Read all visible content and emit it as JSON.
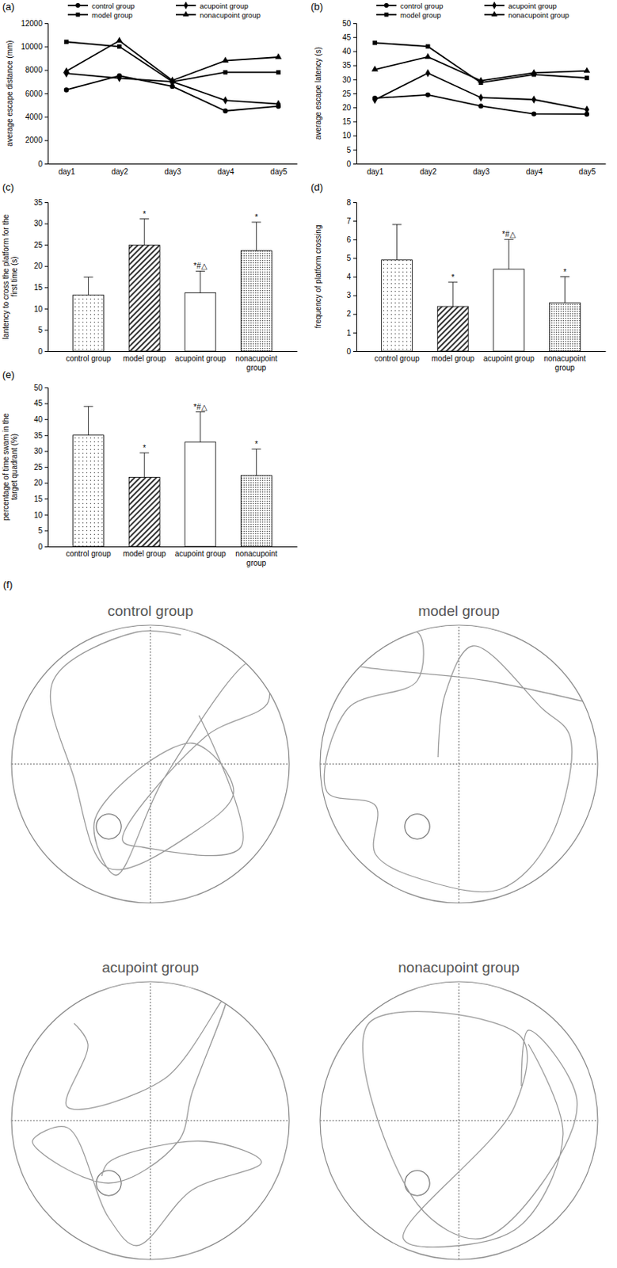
{
  "chart_data": [
    {
      "type": "line",
      "panel": "(a)",
      "y_label": "average escape distance  (mm)",
      "x": [
        "day1",
        "day2",
        "day3",
        "day4",
        "day5"
      ],
      "ylim": [
        0,
        12000
      ],
      "yticks": [
        0,
        2000,
        4000,
        6000,
        8000,
        10000,
        12000
      ],
      "legend": "top",
      "series": [
        {
          "name": "control group",
          "color": "#000000",
          "marker": "circle",
          "values": [
            6300,
            7500,
            6600,
            4500,
            4900
          ]
        },
        {
          "name": "acupoint group",
          "color": "#000000",
          "marker": "diamond",
          "values": [
            7700,
            7300,
            7000,
            5400,
            5100
          ]
        },
        {
          "name": "model group",
          "color": "#000000",
          "marker": "square",
          "values": [
            10400,
            10000,
            7000,
            7800,
            7800
          ]
        },
        {
          "name": "nonacupoint group",
          "color": "#000000",
          "marker": "triangle",
          "values": [
            7900,
            10500,
            7100,
            8800,
            9100
          ]
        }
      ]
    },
    {
      "type": "line",
      "panel": "(b)",
      "y_label": "average escape latency  (s)",
      "x": [
        "day1",
        "day2",
        "day3",
        "day4",
        "day5"
      ],
      "ylim": [
        0,
        50
      ],
      "yticks": [
        0,
        5,
        10,
        15,
        20,
        25,
        30,
        35,
        40,
        45,
        50
      ],
      "legend": "top",
      "series": [
        {
          "name": "control group",
          "color": "#000000",
          "marker": "circle",
          "values": [
            23.3,
            24.5,
            20.5,
            17.7,
            17.6
          ]
        },
        {
          "name": "acupoint group",
          "color": "#000000",
          "marker": "diamond",
          "values": [
            22.7,
            32.2,
            23.5,
            22.8,
            19.2
          ]
        },
        {
          "name": "model group",
          "color": "#000000",
          "marker": "square",
          "values": [
            43,
            41.7,
            28.8,
            31.7,
            30.5
          ]
        },
        {
          "name": "nonacupoint group",
          "color": "#000000",
          "marker": "triangle",
          "values": [
            33.5,
            38,
            29.5,
            32.3,
            33
          ]
        }
      ]
    },
    {
      "type": "bar",
      "panel": "(c)",
      "y_label": [
        "lantency to cross the platform for the",
        "first time (s)"
      ],
      "categories": [
        "control group",
        "model group",
        "acupoint group",
        "nonacupoint group"
      ],
      "values": [
        13.2,
        24.9,
        13.7,
        23.6
      ],
      "errors": [
        4.2,
        6.2,
        5.1,
        6.7
      ],
      "annotations": [
        null,
        "*",
        "*#△",
        "*"
      ],
      "colors": [
        "#ffffff",
        "#ffffff",
        "#ffffff",
        "#ffffff"
      ],
      "ylim": [
        0,
        35
      ],
      "yticks": [
        0,
        5,
        10,
        15,
        20,
        25,
        30,
        35
      ]
    },
    {
      "type": "bar",
      "panel": "(d)",
      "y_label": "frequency of platform crossing",
      "categories": [
        "control group",
        "model group",
        "acupoint group",
        "nonacupoint group"
      ],
      "values": [
        4.9,
        2.4,
        4.4,
        2.6
      ],
      "errors": [
        1.9,
        1.3,
        1.6,
        1.4
      ],
      "annotations": [
        null,
        "*",
        "*#△",
        "*"
      ],
      "colors": [
        "#ffffff",
        "#ffffff",
        "#ffffff",
        "#ffffff"
      ],
      "ylim": [
        0,
        8
      ],
      "yticks": [
        0,
        1,
        2,
        3,
        4,
        5,
        6,
        7,
        8
      ]
    },
    {
      "type": "bar",
      "panel": "(e)",
      "y_label": [
        "percentage of time swam in the",
        "target quadrant (%)"
      ],
      "categories": [
        "control group",
        "model group",
        "acupoint group",
        "nonacupoint group"
      ],
      "values": [
        35,
        21.7,
        32.8,
        22.3
      ],
      "errors": [
        9,
        7.7,
        9.5,
        8.3
      ],
      "annotations": [
        null,
        "*",
        "*#△",
        "*"
      ],
      "colors": [
        "#ffffff",
        "#ffffff",
        "#ffffff",
        "#ffffff"
      ],
      "ylim": [
        0,
        50
      ],
      "yticks": [
        0,
        5,
        10,
        15,
        20,
        25,
        30,
        35,
        40,
        45,
        50
      ]
    },
    {
      "type": "trajectory",
      "panel": "(f)",
      "plots": [
        {
          "title": "control group",
          "xlim": [
            -1,
            1
          ],
          "ylim": [
            -1,
            1
          ],
          "tick_labels": false,
          "color": "#9a9a9a",
          "x": [
            0.22,
            -0.1,
            -0.7,
            -0.55,
            -0.3,
            0.3,
            0.6,
            0.3,
            -0.4,
            -0.25,
            0.1,
            0.75,
            0.85,
            0.4,
            -0.2,
            -0.05,
            0.65,
            0.35
          ],
          "y": [
            0.93,
            0.95,
            0.6,
            -0.1,
            -0.75,
            -0.5,
            -0.2,
            0.15,
            -0.4,
            -0.8,
            -0.1,
            0.75,
            0.45,
            0.2,
            -0.55,
            -0.6,
            -0.6,
            0.35
          ],
          "platform": {
            "x": -0.3,
            "y": -0.45,
            "r": 0.09
          }
        },
        {
          "title": "model group",
          "xlim": [
            -1,
            1
          ],
          "ylim": [
            -1,
            1
          ],
          "tick_labels": false,
          "color": "#9a9a9a",
          "x": [
            0.9,
            0.2,
            -0.85,
            -0.3,
            -0.3,
            -0.8,
            -0.95,
            -0.6,
            -0.6,
            -0.2,
            0.3,
            0.65,
            0.8,
            0.6,
            0.1,
            -0.1,
            -0.15
          ],
          "y": [
            0.45,
            0.6,
            0.75,
            0.95,
            0.6,
            0.4,
            -0.2,
            -0.3,
            -0.65,
            -0.85,
            -0.9,
            -0.55,
            0.2,
            0.4,
            0.85,
            0.5,
            0.05
          ],
          "platform": {
            "x": -0.3,
            "y": -0.45,
            "r": 0.09
          }
        },
        {
          "title": "acupoint group",
          "xlim": [
            -1,
            1
          ],
          "ylim": [
            -1,
            1
          ],
          "tick_labels": false,
          "color": "#9a9a9a",
          "x": [
            -0.55,
            -0.45,
            -0.6,
            0.1,
            0.55,
            0.3,
            0.2,
            -0.3,
            -0.85,
            -0.6,
            -0.3,
            -0.1,
            0.3,
            0.8,
            0.4,
            -0.3,
            -0.35
          ],
          "y": [
            0.7,
            0.55,
            0.1,
            0.3,
            0.9,
            0.2,
            -0.15,
            -0.45,
            -0.15,
            -0.05,
            -0.7,
            -0.9,
            -0.5,
            -0.3,
            -0.15,
            -0.3,
            -0.4
          ],
          "platform": {
            "x": -0.3,
            "y": -0.45,
            "r": 0.09
          }
        },
        {
          "title": "nonacupoint group",
          "xlim": [
            -1,
            1
          ],
          "ylim": [
            -1,
            1
          ],
          "tick_labels": false,
          "color": "#9a9a9a",
          "x": [
            0.45,
            0.5,
            0.85,
            0.6,
            0.15,
            -0.3,
            -0.65,
            0.45,
            0.4,
            -0.4,
            0.0,
            0.45,
            0.75,
            0.5
          ],
          "y": [
            0.25,
            0.65,
            0.15,
            -0.45,
            -0.85,
            -0.6,
            0.7,
            0.6,
            0.1,
            -0.85,
            -0.9,
            -0.75,
            -0.1,
            0.55
          ],
          "platform": {
            "x": -0.3,
            "y": -0.45,
            "r": 0.09
          }
        }
      ]
    }
  ]
}
